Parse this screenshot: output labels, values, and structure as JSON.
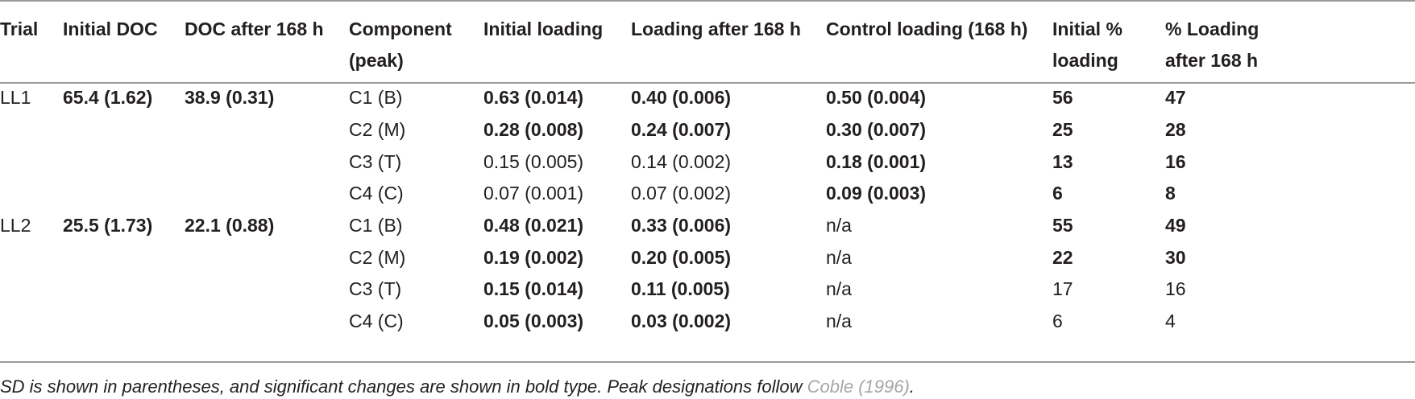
{
  "table": {
    "headers": [
      "Trial",
      "Initial DOC",
      "DOC after 168 h",
      [
        "Component",
        "(peak)"
      ],
      "Initial loading",
      "Loading after 168 h",
      "Control loading (168 h)",
      [
        "Initial %",
        "loading"
      ],
      [
        "% Loading",
        "after 168 h"
      ]
    ],
    "rows": [
      [
        "LL1",
        "65.4 (1.62)",
        "38.9 (0.31)",
        "C1 (B)",
        "0.63 (0.014)",
        "0.40 (0.006)",
        "0.50 (0.004)",
        "56",
        "47"
      ],
      [
        "",
        "",
        "",
        "C2 (M)",
        "0.28 (0.008)",
        "0.24 (0.007)",
        "0.30 (0.007)",
        "25",
        "28"
      ],
      [
        "",
        "",
        "",
        "C3 (T)",
        "0.15 (0.005)",
        "0.14 (0.002)",
        "0.18 (0.001)",
        "13",
        "16"
      ],
      [
        "",
        "",
        "",
        "C4 (C)",
        "0.07 (0.001)",
        "0.07 (0.002)",
        "0.09 (0.003)",
        "6",
        "8"
      ],
      [
        "LL2",
        "25.5 (1.73)",
        "22.1 (0.88)",
        "C1 (B)",
        "0.48 (0.021)",
        "0.33 (0.006)",
        "n/a",
        "55",
        "49"
      ],
      [
        "",
        "",
        "",
        "C2 (M)",
        "0.19 (0.002)",
        "0.20 (0.005)",
        "n/a",
        "22",
        "30"
      ],
      [
        "",
        "",
        "",
        "C3 (T)",
        "0.15 (0.014)",
        "0.11 (0.005)",
        "n/a",
        "17",
        "16"
      ],
      [
        "",
        "",
        "",
        "C4 (C)",
        "0.05 (0.003)",
        "0.03 (0.002)",
        "n/a",
        "6",
        "4"
      ]
    ],
    "bold": [
      [
        false,
        true,
        true,
        false,
        true,
        true,
        true,
        true,
        true
      ],
      [
        false,
        false,
        false,
        false,
        true,
        true,
        true,
        true,
        true
      ],
      [
        false,
        false,
        false,
        false,
        false,
        false,
        true,
        true,
        true
      ],
      [
        false,
        false,
        false,
        false,
        false,
        false,
        true,
        true,
        true
      ],
      [
        false,
        true,
        true,
        false,
        true,
        true,
        false,
        true,
        true
      ],
      [
        false,
        false,
        false,
        false,
        true,
        true,
        false,
        true,
        true
      ],
      [
        false,
        false,
        false,
        false,
        true,
        true,
        false,
        false,
        false
      ],
      [
        false,
        false,
        false,
        false,
        true,
        true,
        false,
        false,
        false
      ]
    ]
  },
  "footnote": {
    "text": "SD is shown in parentheses, and significant changes are shown in bold type. Peak designations follow ",
    "citation": "Coble (1996)",
    "end": "."
  }
}
